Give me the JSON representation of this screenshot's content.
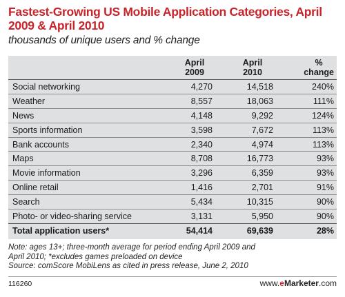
{
  "chart_data": {
    "type": "table",
    "title": "Fastest-Growing US Mobile Application Categories, April 2009 & April 2010",
    "subtitle": "thousands of unique users and % change",
    "columns": [
      "",
      "April 2009",
      "April 2010",
      "% change"
    ],
    "rows": [
      {
        "category": "Social networking",
        "apr2009": "4,270",
        "apr2010": "14,518",
        "change": "240%"
      },
      {
        "category": "Weather",
        "apr2009": "8,557",
        "apr2010": "18,063",
        "change": "111%"
      },
      {
        "category": "News",
        "apr2009": "4,148",
        "apr2010": "9,292",
        "change": "124%"
      },
      {
        "category": "Sports information",
        "apr2009": "3,598",
        "apr2010": "7,672",
        "change": "113%"
      },
      {
        "category": "Bank accounts",
        "apr2009": "2,340",
        "apr2010": "4,974",
        "change": "113%"
      },
      {
        "category": "Maps",
        "apr2009": "8,708",
        "apr2010": "16,773",
        "change": "93%"
      },
      {
        "category": "Movie information",
        "apr2009": "3,296",
        "apr2010": "6,359",
        "change": "93%"
      },
      {
        "category": "Online retail",
        "apr2009": "1,416",
        "apr2010": "2,701",
        "change": "91%"
      },
      {
        "category": "Search",
        "apr2009": "5,434",
        "apr2010": "10,315",
        "change": "90%"
      },
      {
        "category": "Photo- or video-sharing service",
        "apr2009": "3,131",
        "apr2010": "5,950",
        "change": "90%"
      }
    ],
    "total": {
      "category": "Total application users*",
      "apr2009": "54,414",
      "apr2010": "69,639",
      "change": "28%"
    }
  },
  "header": {
    "col1_line1": "April",
    "col1_line2": "2009",
    "col2_line1": "April",
    "col2_line2": "2010",
    "col3_line1": "%",
    "col3_line2": "change"
  },
  "notes": {
    "line1": "Note: ages 13+; three-month average for period ending April 2009 and",
    "line2": "April 2010; *excludes games preloaded on device",
    "line3": "Source: comScore MobiLens as cited in press release, June 2, 2010"
  },
  "footer": {
    "chart_id": "116260",
    "brand_prefix": "www.",
    "brand_e": "e",
    "brand_name": "Marketer",
    "brand_suffix": ".com"
  },
  "colors": {
    "title": "#c8242b",
    "table_bg": "#dfe0e2"
  }
}
